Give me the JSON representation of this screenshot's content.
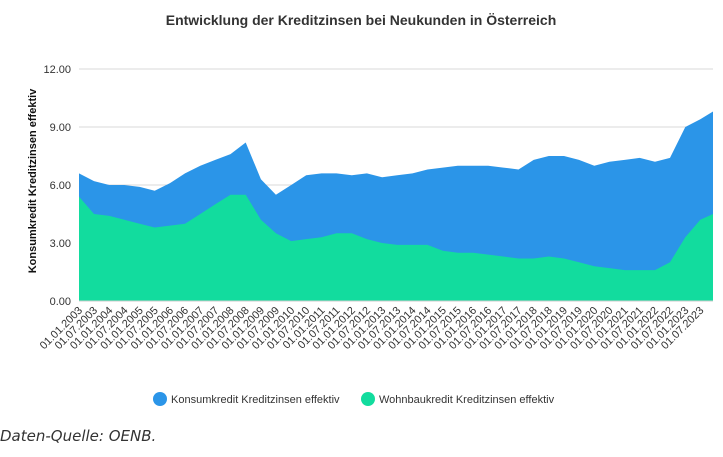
{
  "source_note": "Daten-Quelle: OENB.",
  "colors": {
    "series1": "#2b95e8",
    "series2": "#12dc9e",
    "grid": "#d9d9d9",
    "axis": "#333333"
  },
  "chart_data": {
    "type": "area",
    "title": "Entwicklung der Kreditzinsen bei Neukunden in Österreich",
    "xlabel": "",
    "ylabel": "Konsumkredit Kreditzinsen effektiv",
    "ylim": [
      0,
      12
    ],
    "yticks": [
      "0.00",
      "3.00",
      "6.00",
      "9.00",
      "12.00"
    ],
    "grid": true,
    "legend": "bottom",
    "x_tick_labels": [
      "01.01.2003",
      "01.07.2003",
      "01.01.2004",
      "01.07.2004",
      "01.01.2005",
      "01.07.2005",
      "01.01.2006",
      "01.07.2006",
      "01.01.2007",
      "01.07.2007",
      "01.01.2008",
      "01.07.2008",
      "01.01.2009",
      "01.07.2009",
      "01.01.2010",
      "01.07.2010",
      "01.01.2011",
      "01.07.2011",
      "01.01.2012",
      "01.07.2012",
      "01.01.2013",
      "01.07.2013",
      "01.01.2014",
      "01.07.2014",
      "01.01.2015",
      "01.07.2015",
      "01.01.2016",
      "01.07.2016",
      "01.01.2017",
      "01.07.2017",
      "01.01.2018",
      "01.07.2018",
      "01.01.2019",
      "01.07.2019",
      "01.01.2020",
      "01.07.2020",
      "01.01.2021",
      "01.07.2021",
      "01.01.2022",
      "01.07.2022",
      "01.01.2023",
      "01.07.2023"
    ],
    "x_range": [
      "01.01.2003",
      "01.12.2023"
    ],
    "series": [
      {
        "name": "Konsumkredit Kreditzinsen effektiv",
        "x": [
          "01.01.2003",
          "01.07.2003",
          "01.01.2004",
          "01.07.2004",
          "01.01.2005",
          "01.07.2005",
          "01.01.2006",
          "01.07.2006",
          "01.01.2007",
          "01.07.2007",
          "01.01.2008",
          "01.07.2008",
          "01.01.2009",
          "01.07.2009",
          "01.01.2010",
          "01.07.2010",
          "01.01.2011",
          "01.07.2011",
          "01.01.2012",
          "01.07.2012",
          "01.01.2013",
          "01.07.2013",
          "01.01.2014",
          "01.07.2014",
          "01.01.2015",
          "01.07.2015",
          "01.01.2016",
          "01.07.2016",
          "01.01.2017",
          "01.07.2017",
          "01.01.2018",
          "01.07.2018",
          "01.01.2019",
          "01.07.2019",
          "01.01.2020",
          "01.07.2020",
          "01.01.2021",
          "01.07.2021",
          "01.01.2022",
          "01.07.2022",
          "01.01.2023",
          "01.07.2023",
          "01.12.2023"
        ],
        "values": [
          6.6,
          6.2,
          6.0,
          6.0,
          5.9,
          5.7,
          6.1,
          6.6,
          7.0,
          7.3,
          7.6,
          8.2,
          6.3,
          5.5,
          6.0,
          6.5,
          6.6,
          6.6,
          6.5,
          6.6,
          6.4,
          6.5,
          6.6,
          6.8,
          6.9,
          7.0,
          7.0,
          7.0,
          6.9,
          6.8,
          7.3,
          7.5,
          7.5,
          7.3,
          7.0,
          7.2,
          7.3,
          7.4,
          7.2,
          7.4,
          9.0,
          9.4,
          9.8
        ]
      },
      {
        "name": "Wohnbaukredit Kreditzinsen effektiv",
        "x": [
          "01.01.2003",
          "01.07.2003",
          "01.01.2004",
          "01.07.2004",
          "01.01.2005",
          "01.07.2005",
          "01.01.2006",
          "01.07.2006",
          "01.01.2007",
          "01.07.2007",
          "01.01.2008",
          "01.07.2008",
          "01.01.2009",
          "01.07.2009",
          "01.01.2010",
          "01.07.2010",
          "01.01.2011",
          "01.07.2011",
          "01.01.2012",
          "01.07.2012",
          "01.01.2013",
          "01.07.2013",
          "01.01.2014",
          "01.07.2014",
          "01.01.2015",
          "01.07.2015",
          "01.01.2016",
          "01.07.2016",
          "01.01.2017",
          "01.07.2017",
          "01.01.2018",
          "01.07.2018",
          "01.01.2019",
          "01.07.2019",
          "01.01.2020",
          "01.07.2020",
          "01.01.2021",
          "01.07.2021",
          "01.01.2022",
          "01.07.2022",
          "01.01.2023",
          "01.07.2023",
          "01.12.2023"
        ],
        "values": [
          5.4,
          4.5,
          4.4,
          4.2,
          4.0,
          3.8,
          3.9,
          4.0,
          4.5,
          5.0,
          5.5,
          5.5,
          4.2,
          3.5,
          3.1,
          3.2,
          3.3,
          3.5,
          3.5,
          3.2,
          3.0,
          2.9,
          2.9,
          2.9,
          2.6,
          2.5,
          2.5,
          2.4,
          2.3,
          2.2,
          2.2,
          2.3,
          2.2,
          2.0,
          1.8,
          1.7,
          1.6,
          1.6,
          1.6,
          2.0,
          3.3,
          4.2,
          4.5
        ]
      }
    ]
  }
}
